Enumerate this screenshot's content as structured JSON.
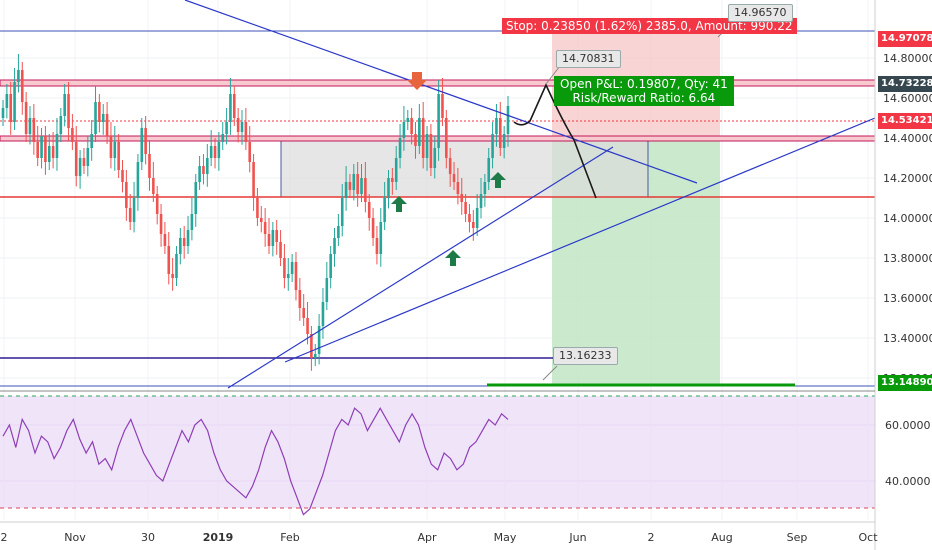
{
  "chart_data": {
    "type": "candlestick",
    "price_axis": {
      "range": [
        13.1,
        15.02
      ],
      "ticks": [
        "14.80000",
        "14.60000",
        "14.40000",
        "14.20000",
        "14.00000",
        "13.80000",
        "13.60000",
        "13.40000",
        "13.20000"
      ]
    },
    "rsi_axis": {
      "range": [
        20,
        85
      ],
      "ticks": [
        "60.0000",
        "40.0000"
      ]
    },
    "time_axis": {
      "ticks": [
        "2",
        "Nov",
        "30",
        "2019",
        "Feb",
        "Apr",
        "May",
        "Jun",
        "2",
        "Aug",
        "Sep",
        "Oct"
      ]
    },
    "price_labels": [
      {
        "value": "14.97078",
        "color": "#f23645"
      },
      {
        "value": "14.73228",
        "color": "#37474f"
      },
      {
        "value": "14.53421",
        "color": "#f23645"
      },
      {
        "value": "13.14890",
        "color": "#089a0b"
      }
    ],
    "annotations": {
      "stop": "Stop: 0.23850 (1.62%) 2385.0, Amount: 990.22",
      "target_price": "14.96570",
      "entry_callout": "14.70831",
      "pnl_line1": "Open P&L: 0.19807, Qty: 41",
      "pnl_line2": "Risk/Reward Ratio: 6.64",
      "low_callout": "13.16233"
    },
    "candles_close": [
      14.55,
      14.62,
      14.48,
      14.68,
      14.74,
      14.58,
      14.42,
      14.5,
      14.38,
      14.3,
      14.41,
      14.28,
      14.36,
      14.3,
      14.42,
      14.51,
      14.62,
      14.45,
      14.38,
      14.21,
      14.3,
      14.26,
      14.35,
      14.42,
      14.58,
      14.48,
      14.52,
      14.41,
      14.3,
      14.38,
      14.24,
      14.18,
      14.05,
      13.98,
      14.1,
      14.28,
      14.45,
      14.32,
      14.2,
      14.12,
      14.02,
      13.92,
      13.86,
      13.72,
      13.7,
      13.82,
      13.9,
      13.86,
      13.94,
      14.02,
      14.18,
      14.26,
      14.22,
      14.3,
      14.36,
      14.3,
      14.38,
      14.42,
      14.48,
      14.62,
      14.5,
      14.43,
      14.48,
      14.38,
      14.28,
      14.1,
      14.0,
      13.98,
      13.92,
      13.86,
      13.94,
      13.88,
      13.8,
      13.7,
      13.72,
      13.78,
      13.64,
      13.55,
      13.5,
      13.42,
      13.3,
      13.32,
      13.46,
      13.58,
      13.7,
      13.82,
      13.9,
      13.96,
      14.1,
      14.18,
      14.14,
      14.22,
      14.12,
      14.2,
      14.08,
      14.0,
      13.9,
      13.82,
      13.98,
      14.1,
      14.2,
      14.18,
      14.3,
      14.4,
      14.48,
      14.5,
      14.42,
      14.36,
      14.5,
      14.3,
      14.42,
      14.25,
      14.35,
      14.62,
      14.5,
      14.3,
      14.22,
      14.18,
      14.12,
      14.08,
      14.02,
      13.98,
      13.95,
      14.05,
      14.12,
      14.18,
      14.3,
      14.42,
      14.5,
      14.35,
      14.42,
      14.56
    ],
    "rsi_values": [
      56,
      60,
      52,
      62,
      58,
      50,
      56,
      54,
      48,
      52,
      58,
      62,
      55,
      50,
      54,
      46,
      48,
      44,
      52,
      58,
      62,
      56,
      50,
      46,
      42,
      40,
      46,
      52,
      58,
      54,
      60,
      62,
      58,
      50,
      44,
      40,
      38,
      36,
      34,
      38,
      44,
      52,
      58,
      54,
      48,
      40,
      34,
      28,
      30,
      36,
      42,
      50,
      58,
      62,
      60,
      66,
      64,
      58,
      62,
      66,
      62,
      58,
      54,
      60,
      64,
      60,
      52,
      46,
      44,
      50,
      48,
      44,
      46,
      52,
      54,
      58,
      62,
      60,
      64,
      62
    ],
    "current_price": 14.53421
  }
}
